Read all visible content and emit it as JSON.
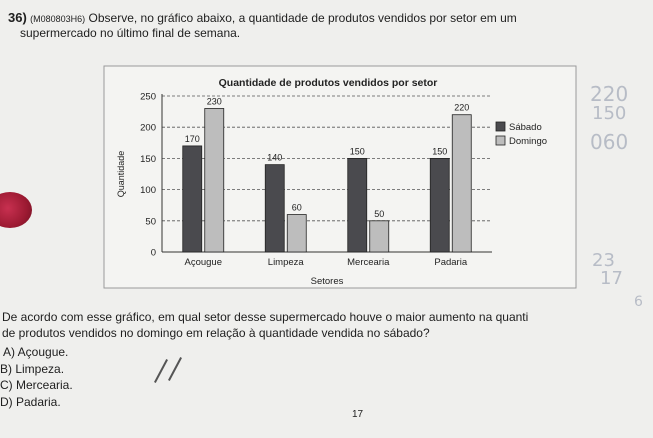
{
  "question": {
    "number": "36)",
    "code": "(M080803H6)",
    "line1": "Observe, no gráfico abaixo, a quantidade de produtos vendidos por setor em um",
    "line2": "supermercado no último final de semana."
  },
  "chart_data": {
    "type": "bar",
    "title": "Quantidade de produtos vendidos por setor",
    "xlabel": "Setores",
    "ylabel": "Quantidade",
    "ylim": [
      0,
      250
    ],
    "yticks": [
      0,
      50,
      100,
      150,
      200,
      250
    ],
    "categories": [
      "Açougue",
      "Limpeza",
      "Mercearia",
      "Padaria"
    ],
    "series": [
      {
        "name": "Sábado",
        "values": [
          170,
          140,
          150,
          150
        ],
        "color": "#4a4a4e"
      },
      {
        "name": "Domingo",
        "values": [
          230,
          60,
          50,
          220
        ],
        "color": "#bdbdbd"
      }
    ],
    "gridlines": "dashed",
    "legend": "right"
  },
  "prompt": {
    "line1": "De acordo com esse gráfico, em qual setor desse supermercado houve o maior aumento na quanti",
    "line2": "de produtos vendidos no domingo em relação à quantidade vendida no sábado?"
  },
  "options": [
    "A) Açougue.",
    "B) Limpeza.",
    "C) Mercearia.",
    "D) Padaria."
  ],
  "page_number": "17",
  "handwriting": [
    "220",
    "150",
    "060",
    "23",
    "17",
    "6"
  ]
}
